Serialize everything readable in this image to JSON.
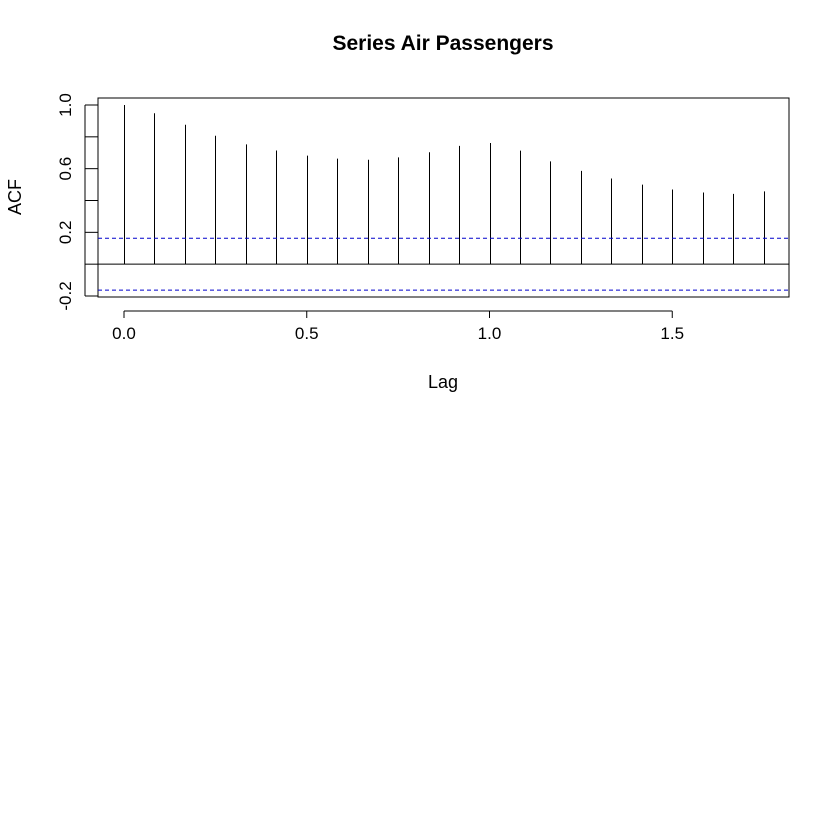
{
  "chart_data": {
    "type": "bar",
    "title": "Series Air Passengers",
    "xlabel": "Lag",
    "ylabel": "ACF",
    "xlim": [
      -0.07,
      1.82
    ],
    "ylim": [
      -0.2,
      1.0
    ],
    "x_ticks": [
      0.0,
      0.5,
      1.0,
      1.5
    ],
    "x_tick_labels": [
      "0.0",
      "0.5",
      "1.0",
      "1.5"
    ],
    "y_ticks": [
      -0.2,
      0.2,
      0.6,
      1.0
    ],
    "y_tick_labels": [
      "-0.2",
      "0.2",
      "0.6",
      "1.0"
    ],
    "y_minor_ticks": [
      0.0,
      0.4,
      0.8
    ],
    "grid": false,
    "series": [
      {
        "type": "stem",
        "x": [
          0.0,
          0.0833,
          0.1667,
          0.25,
          0.3333,
          0.4167,
          0.5,
          0.5833,
          0.6667,
          0.75,
          0.8333,
          0.9167,
          1.0,
          1.0833,
          1.1667,
          1.25,
          1.3333,
          1.4167,
          1.5,
          1.5833,
          1.6667,
          1.75
        ],
        "values": [
          1.0,
          0.948,
          0.876,
          0.807,
          0.753,
          0.714,
          0.682,
          0.663,
          0.656,
          0.671,
          0.703,
          0.743,
          0.761,
          0.713,
          0.646,
          0.586,
          0.538,
          0.5,
          0.469,
          0.45,
          0.442,
          0.457
        ],
        "color": "#000000"
      }
    ],
    "confidence_band": {
      "upper": 0.163,
      "lower": -0.163,
      "color": "#0000cc",
      "style": "dashed"
    },
    "zero_line": 0.0
  }
}
